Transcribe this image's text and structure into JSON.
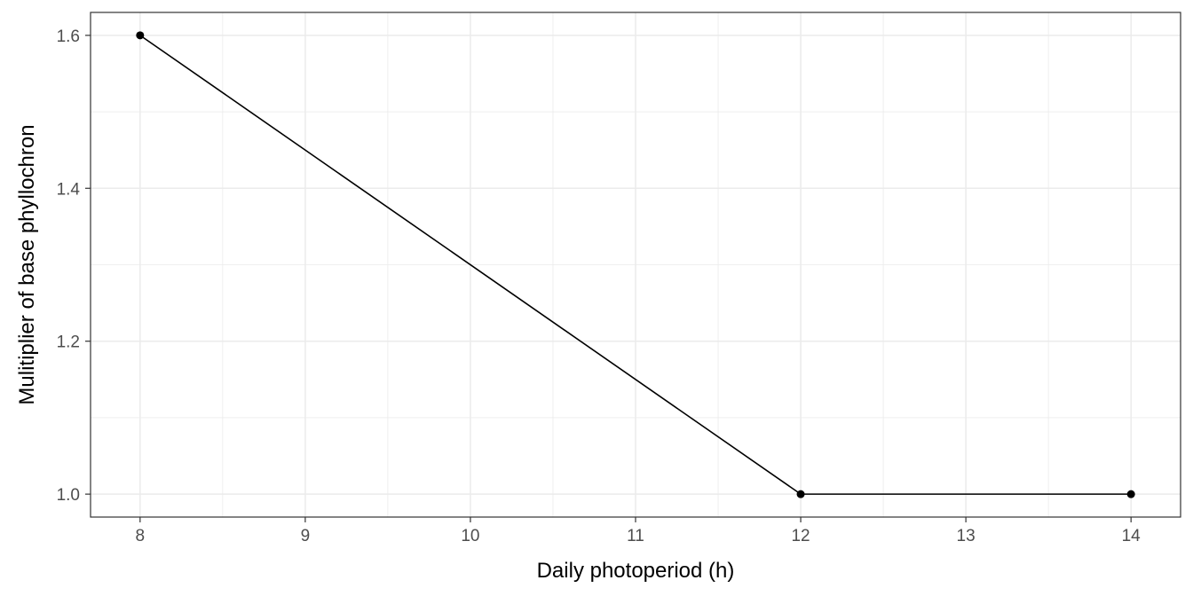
{
  "chart_data": {
    "type": "line",
    "title": "",
    "xlabel": "Daily photoperiod (h)",
    "ylabel": "Mulitiplier of base phyllochron",
    "x": [
      8,
      12,
      14
    ],
    "series": [
      {
        "values": [
          1.6,
          1.0,
          1.0
        ]
      }
    ],
    "xlim": [
      7.7,
      14.3
    ],
    "ylim": [
      0.97,
      1.63
    ],
    "xticks": [
      8,
      9,
      10,
      11,
      12,
      13,
      14
    ],
    "xtick_labels": [
      "8",
      "9",
      "10",
      "11",
      "12",
      "13",
      "14"
    ],
    "yticks": [
      1.0,
      1.2,
      1.4,
      1.6
    ],
    "ytick_labels": [
      "1.0",
      "1.2",
      "1.4",
      "1.6"
    ],
    "grid": true,
    "legend": "none",
    "line_color": "#000000",
    "point_color": "#000000",
    "grid_color": "#ebebeb",
    "panel_border_color": "#333333"
  }
}
